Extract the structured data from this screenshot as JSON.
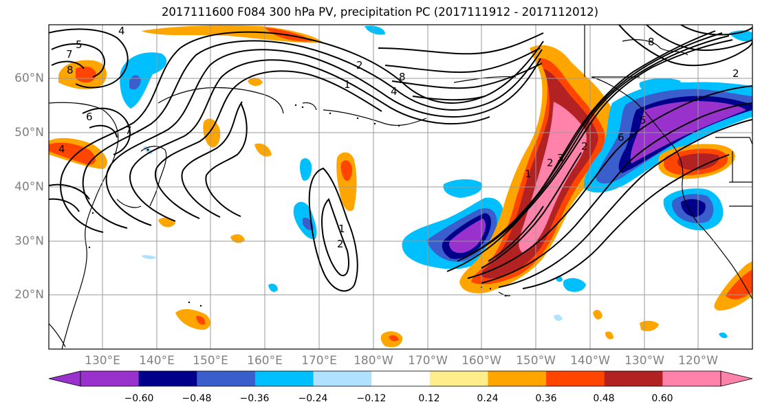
{
  "title": "2017111600 F084 300 hPa PV, precipitation PC (2017111912 - 2017112012)",
  "map": {
    "lat_labels": [
      "60°N",
      "50°N",
      "40°N",
      "30°N",
      "20°N"
    ],
    "lon_labels": [
      "130°E",
      "140°E",
      "150°E",
      "160°E",
      "170°E",
      "180°W",
      "170°W",
      "160°W",
      "150°W",
      "140°W",
      "130°W",
      "120°W"
    ],
    "contour_labels": [
      "5",
      "4",
      "7",
      "8",
      "6",
      "7",
      "4",
      "2",
      "8",
      "4",
      "1",
      "1",
      "2",
      "2",
      "1",
      "2",
      "3",
      "5",
      "6",
      "8",
      "2"
    ]
  },
  "colorbar": {
    "tick_labels": [
      "−0.60",
      "−0.48",
      "−0.36",
      "−0.24",
      "−0.12",
      "0.12",
      "0.24",
      "0.36",
      "0.48",
      "0.60"
    ],
    "colors": [
      "#9932cc",
      "#00008b",
      "#3a5fcd",
      "#00bfff",
      "#b0e2ff",
      "#ffffff",
      "#ffec8b",
      "#ffa500",
      "#ff4500",
      "#b22222",
      "#ff82ab"
    ]
  }
}
